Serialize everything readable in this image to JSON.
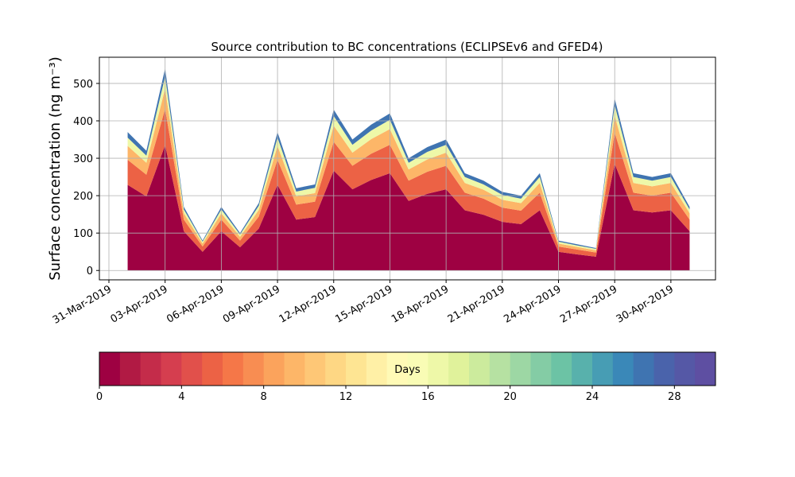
{
  "chart_data": {
    "type": "stacked_area",
    "title": "Source contribution to BC concentrations (ECLIPSEv6 and GFED4)",
    "y_label": "Surface concentration (ng m⁻³)",
    "x": [
      "2019-04-01",
      "2019-04-02",
      "2019-04-03",
      "2019-04-04",
      "2019-04-05",
      "2019-04-06",
      "2019-04-07",
      "2019-04-08",
      "2019-04-09",
      "2019-04-10",
      "2019-04-11",
      "2019-04-12",
      "2019-04-13",
      "2019-04-14",
      "2019-04-15",
      "2019-04-16",
      "2019-04-17",
      "2019-04-18",
      "2019-04-19",
      "2019-04-20",
      "2019-04-21",
      "2019-04-22",
      "2019-04-23",
      "2019-04-24",
      "2019-04-25",
      "2019-04-26",
      "2019-04-27",
      "2019-04-28",
      "2019-04-29",
      "2019-04-30",
      "2019-05-01"
    ],
    "series": [
      {
        "color": "#9e0142",
        "values": [
          229,
          198,
          335,
          105,
          50,
          105,
          62,
          112,
          229,
          136,
          143,
          267,
          217,
          242,
          260,
          186,
          205,
          217,
          161,
          149,
          130,
          124,
          161,
          50,
          43,
          37,
          285,
          161,
          155,
          161,
          105
        ]
      },
      {
        "color": "#ec6245",
        "values": [
          67,
          58,
          97,
          31,
          14,
          31,
          18,
          32,
          67,
          40,
          41,
          77,
          63,
          70,
          76,
          54,
          59,
          63,
          47,
          43,
          38,
          36,
          47,
          14,
          13,
          11,
          83,
          47,
          45,
          47,
          31
        ]
      },
      {
        "color": "#fdb668",
        "values": [
          37,
          32,
          54,
          17,
          8,
          17,
          10,
          18,
          37,
          22,
          23,
          43,
          35,
          39,
          42,
          30,
          33,
          35,
          26,
          24,
          21,
          20,
          26,
          8,
          7,
          6,
          46,
          26,
          25,
          26,
          17
        ]
      },
      {
        "color": "#eef8a8",
        "values": [
          22,
          19,
          32,
          10,
          5,
          10,
          6,
          11,
          22,
          13,
          14,
          26,
          21,
          23,
          25,
          18,
          20,
          21,
          16,
          14,
          13,
          12,
          16,
          5,
          4,
          4,
          28,
          16,
          15,
          16,
          10
        ]
      },
      {
        "color": "#3f74b1",
        "values": [
          15,
          13,
          22,
          7,
          3,
          7,
          4,
          7,
          15,
          9,
          9,
          17,
          14,
          16,
          17,
          12,
          13,
          14,
          10,
          10,
          8,
          8,
          10,
          3,
          3,
          2,
          18,
          10,
          10,
          10,
          7
        ]
      }
    ],
    "xlim": [
      "2019-03-31",
      "2019-05-02"
    ],
    "xticks": [
      {
        "value": "2019-03-31",
        "label": "31-Mar-2019"
      },
      {
        "value": "2019-04-03",
        "label": "03-Apr-2019"
      },
      {
        "value": "2019-04-06",
        "label": "06-Apr-2019"
      },
      {
        "value": "2019-04-09",
        "label": "09-Apr-2019"
      },
      {
        "value": "2019-04-12",
        "label": "12-Apr-2019"
      },
      {
        "value": "2019-04-15",
        "label": "15-Apr-2019"
      },
      {
        "value": "2019-04-18",
        "label": "18-Apr-2019"
      },
      {
        "value": "2019-04-21",
        "label": "21-Apr-2019"
      },
      {
        "value": "2019-04-24",
        "label": "24-Apr-2019"
      },
      {
        "value": "2019-04-27",
        "label": "27-Apr-2019"
      },
      {
        "value": "2019-04-30",
        "label": "30-Apr-2019"
      }
    ],
    "ylim": [
      -25,
      570
    ],
    "yticks": [
      0,
      100,
      200,
      300,
      400,
      500
    ],
    "grid": true,
    "colorbar": {
      "label": "Days",
      "lim": [
        0,
        30
      ],
      "ticks": [
        0,
        4,
        8,
        12,
        16,
        20,
        24,
        28
      ],
      "colors": [
        "#9e0142",
        "#b11a44",
        "#c42c4a",
        "#d53e4f",
        "#e1504b",
        "#ec6245",
        "#f57748",
        "#f88d52",
        "#fba35c",
        "#fdb668",
        "#fec776",
        "#fed784",
        "#fee593",
        "#fff0a6",
        "#fffab6",
        "#f9fcb5",
        "#eef8a8",
        "#e0f29b",
        "#cceb9d",
        "#b6e1a2",
        "#9dd7a4",
        "#84cca5",
        "#6cc3a5",
        "#58b1ac",
        "#479db4",
        "#3a88b8",
        "#3f74b1",
        "#4a63ab",
        "#5558a6",
        "#5e4fa2"
      ]
    }
  }
}
